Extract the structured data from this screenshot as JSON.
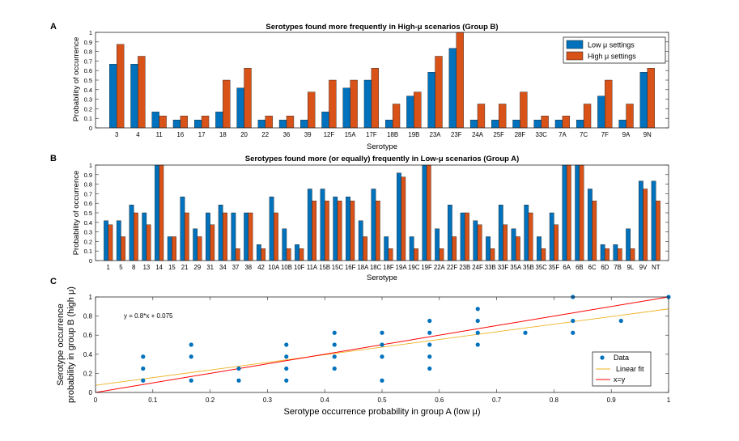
{
  "colors": {
    "low": "#0072bd",
    "high": "#d95319",
    "fit": "#edb120",
    "xy": "#ff0000",
    "data": "#0072bd"
  },
  "chart_data": [
    {
      "id": "A",
      "panel_label": "A",
      "type": "bar",
      "title": "Serotypes found more frequently in High-μ scenarios (Group B)",
      "xlabel": "Serotype",
      "ylabel": "Probability of occurrence",
      "ylim": [
        0,
        1
      ],
      "yticks": [
        "0",
        "0.1",
        "0.2",
        "0.3",
        "0.4",
        "0.5",
        "0.6",
        "0.7",
        "0.8",
        "0.9",
        "1"
      ],
      "legend_position": "top-right",
      "categories": [
        "3",
        "4",
        "11",
        "16",
        "17",
        "18",
        "20",
        "22",
        "36",
        "39",
        "12F",
        "15A",
        "17F",
        "18B",
        "19B",
        "23A",
        "23F",
        "24A",
        "25F",
        "28F",
        "33C",
        "7A",
        "7C",
        "7F",
        "9A",
        "9N"
      ],
      "series": [
        {
          "name": "Low μ settings",
          "values": [
            0.667,
            0.667,
            0.167,
            0.083,
            0.083,
            0.167,
            0.417,
            0.083,
            0.083,
            0.083,
            0.167,
            0.417,
            0.5,
            0.083,
            0.333,
            0.583,
            0.833,
            0.083,
            0.083,
            0.083,
            0.083,
            0.083,
            0.083,
            0.333,
            0.083,
            0.583
          ]
        },
        {
          "name": "High μ settings",
          "values": [
            0.875,
            0.75,
            0.125,
            0.125,
            0.125,
            0.5,
            0.625,
            0.125,
            0.125,
            0.375,
            0.5,
            0.5,
            0.625,
            0.25,
            0.375,
            0.75,
            1.0,
            0.25,
            0.25,
            0.375,
            0.125,
            0.125,
            0.25,
            0.5,
            0.25,
            0.625
          ]
        }
      ]
    },
    {
      "id": "B",
      "panel_label": "B",
      "type": "bar",
      "title": "Serotypes found more (or equally) frequently in Low-μ scenarios (Group A)",
      "xlabel": "Serotype",
      "ylabel": "Probability of occurrence",
      "ylim": [
        0,
        1
      ],
      "yticks": [
        "0",
        "0.1",
        "0.2",
        "0.3",
        "0.4",
        "0.5",
        "0.6",
        "0.7",
        "0.8",
        "0.9",
        "1"
      ],
      "categories": [
        "1",
        "5",
        "8",
        "13",
        "14",
        "15",
        "21",
        "29",
        "31",
        "34",
        "37",
        "38",
        "42",
        "10A",
        "10B",
        "10F",
        "11A",
        "15B",
        "15C",
        "16F",
        "18A",
        "18C",
        "18F",
        "19A",
        "19C",
        "19F",
        "22A",
        "22F",
        "23B",
        "24F",
        "33B",
        "33F",
        "35A",
        "35B",
        "35C",
        "35F",
        "6A",
        "6B",
        "6C",
        "6D",
        "7B",
        "9L",
        "9V",
        "NT"
      ],
      "series": [
        {
          "name": "Low μ settings",
          "values": [
            0.417,
            0.417,
            0.583,
            0.5,
            1.0,
            0.25,
            0.667,
            0.333,
            0.5,
            0.583,
            0.5,
            0.5,
            0.167,
            0.667,
            0.333,
            0.167,
            0.75,
            0.75,
            0.667,
            0.667,
            0.417,
            0.75,
            0.25,
            0.917,
            0.25,
            1.0,
            0.333,
            0.583,
            0.5,
            0.417,
            0.25,
            0.583,
            0.333,
            0.583,
            0.25,
            0.5,
            1.0,
            1.0,
            0.75,
            0.167,
            0.167,
            0.333,
            0.833,
            0.833
          ]
        },
        {
          "name": "High μ settings",
          "values": [
            0.375,
            0.25,
            0.5,
            0.375,
            1.0,
            0.25,
            0.5,
            0.25,
            0.375,
            0.5,
            0.125,
            0.5,
            0.125,
            0.5,
            0.125,
            0.125,
            0.625,
            0.625,
            0.625,
            0.625,
            0.25,
            0.625,
            0.125,
            0.875,
            0.125,
            1.0,
            0.125,
            0.25,
            0.5,
            0.375,
            0.125,
            0.375,
            0.25,
            0.5,
            0.125,
            0.375,
            1.0,
            1.0,
            0.625,
            0.125,
            0.125,
            0.125,
            0.75,
            0.625
          ]
        }
      ]
    },
    {
      "id": "C",
      "panel_label": "C",
      "type": "scatter",
      "xlabel": "Serotype occurrence probability in group A (low  μ)",
      "ylabel_lines": [
        "Serotype occurrence",
        "probability in group B (high  μ)"
      ],
      "xlim": [
        0,
        1
      ],
      "ylim": [
        0,
        1
      ],
      "xticks": [
        "0",
        "0.1",
        "0.2",
        "0.3",
        "0.4",
        "0.5",
        "0.6",
        "0.7",
        "0.8",
        "0.9",
        "1"
      ],
      "yticks": [
        "0",
        "0.2",
        "0.4",
        "0.6",
        "0.8",
        "1"
      ],
      "annotation": "y = 0.8*x + 0.075",
      "fit": {
        "slope": 0.8,
        "intercept": 0.075
      },
      "legend_position": "bottom-right",
      "legend": [
        "Data",
        "Linear fit",
        "x=y"
      ],
      "points": [
        [
          0.083,
          0.125
        ],
        [
          0.083,
          0.25
        ],
        [
          0.083,
          0.375
        ],
        [
          0.167,
          0.125
        ],
        [
          0.167,
          0.375
        ],
        [
          0.167,
          0.5
        ],
        [
          0.25,
          0.125
        ],
        [
          0.25,
          0.25
        ],
        [
          0.333,
          0.125
        ],
        [
          0.333,
          0.25
        ],
        [
          0.333,
          0.375
        ],
        [
          0.333,
          0.5
        ],
        [
          0.417,
          0.25
        ],
        [
          0.417,
          0.375
        ],
        [
          0.417,
          0.5
        ],
        [
          0.417,
          0.625
        ],
        [
          0.5,
          0.125
        ],
        [
          0.5,
          0.375
        ],
        [
          0.5,
          0.5
        ],
        [
          0.5,
          0.625
        ],
        [
          0.583,
          0.25
        ],
        [
          0.583,
          0.375
        ],
        [
          0.583,
          0.5
        ],
        [
          0.583,
          0.625
        ],
        [
          0.583,
          0.75
        ],
        [
          0.667,
          0.5
        ],
        [
          0.667,
          0.625
        ],
        [
          0.667,
          0.75
        ],
        [
          0.667,
          0.875
        ],
        [
          0.75,
          0.625
        ],
        [
          0.833,
          0.625
        ],
        [
          0.833,
          0.75
        ],
        [
          0.833,
          1.0
        ],
        [
          0.917,
          0.75
        ],
        [
          1.0,
          1.0
        ]
      ]
    }
  ]
}
